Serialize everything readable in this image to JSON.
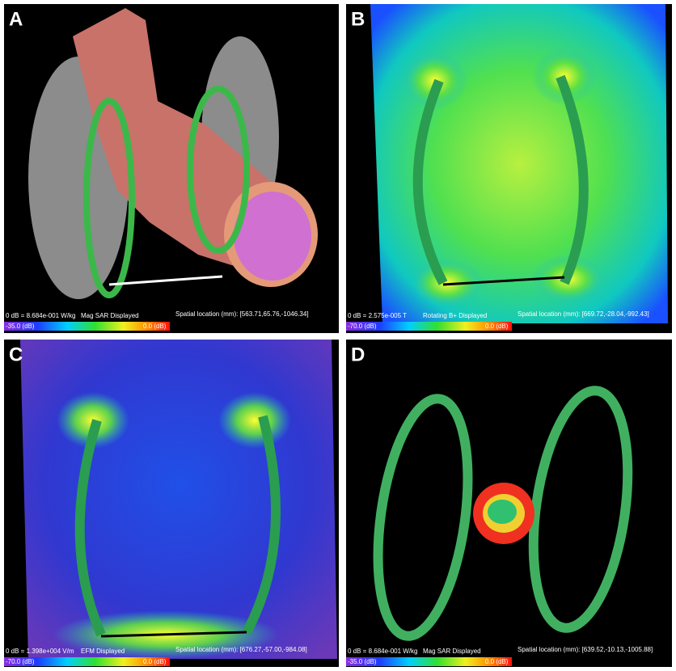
{
  "panels": [
    {
      "label": "A",
      "reference": "0 dB = 8.684e-001 W/kg",
      "display": "Mag SAR Displayed",
      "location": "Spatial location (mm): [563.71,65.76,-1046.34]",
      "scale_min": "-35.0 (dB)",
      "scale_max": "0.0 (dB)"
    },
    {
      "label": "B",
      "reference": "0 dB = 2.575e-005 T",
      "display": "Rotating B+ Displayed",
      "location": "Spatial location (mm): [669.72,-28.04,-992.43]",
      "scale_min": "-70.0 (dB)",
      "scale_max": "0.0 (dB)"
    },
    {
      "label": "C",
      "reference": "0 dB = 1.398e+004 V/m",
      "display": "EFM Displayed",
      "location": "Spatial location (mm): [676.27,-57.00,-984.08]",
      "scale_min": "-70.0 (dB)",
      "scale_max": "0.0 (dB)"
    },
    {
      "label": "D",
      "reference": "0 dB = 8.684e-001 W/kg",
      "display": "Mag SAR Displayed",
      "location": "Spatial location (mm): [639.52,-10.13,-1005.88]",
      "scale_min": "-35.0 (dB)",
      "scale_max": "0.0 (dB)"
    }
  ]
}
